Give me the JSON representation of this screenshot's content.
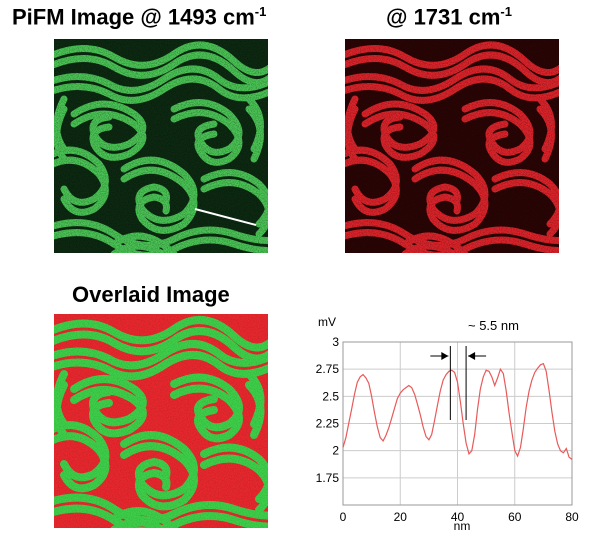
{
  "titles": {
    "pifm_main": "PiFM Image @ 1493 cm",
    "pifm_exp": "-1",
    "second_main": "@ 1731 cm",
    "second_exp": "-1",
    "overlay": "Overlaid Image"
  },
  "colors": {
    "green_bright": "#4fcf5a",
    "green_dark": "#0d2a12",
    "red_bright": "#e8262e",
    "red_dark": "#2b0505",
    "overlay_green": "#3ed04a",
    "overlay_red": "#e8282e",
    "line_profile": "#e85a5a",
    "grid": "#cccccc",
    "marker_line": "#ffffff"
  },
  "chart_data": {
    "type": "line",
    "ylabel": "mV",
    "xlabel": "nm",
    "xlim": [
      0,
      80
    ],
    "ylim": [
      1.5,
      3
    ],
    "xticks": [
      "0",
      "20",
      "40",
      "60",
      "80"
    ],
    "yticks": [
      "1.75",
      "2",
      "2.25",
      "2.5",
      "2.75",
      "3"
    ],
    "annotation": "~ 5.5 nm",
    "marker_x": [
      37.5,
      43
    ],
    "grid": true,
    "series": [
      {
        "x": [
          0,
          1,
          2,
          3,
          4,
          5,
          6,
          7,
          8,
          9,
          10,
          11,
          12,
          13,
          14,
          15,
          16,
          17,
          18,
          19,
          20,
          21,
          22,
          23,
          24,
          25,
          26,
          27,
          28,
          29,
          30,
          31,
          32,
          33,
          34,
          35,
          36,
          37,
          38,
          39,
          40,
          41,
          42,
          43,
          44,
          45,
          46,
          47,
          48,
          49,
          50,
          51,
          52,
          53,
          54,
          55,
          56,
          57,
          58,
          59,
          60,
          61,
          62,
          63,
          64,
          65,
          66,
          67,
          68,
          69,
          70,
          71,
          72,
          73,
          74,
          75,
          76,
          77,
          78,
          79,
          80
        ],
        "values": [
          2.03,
          2.12,
          2.25,
          2.38,
          2.52,
          2.63,
          2.68,
          2.7,
          2.67,
          2.62,
          2.5,
          2.35,
          2.22,
          2.12,
          2.09,
          2.14,
          2.21,
          2.3,
          2.39,
          2.48,
          2.53,
          2.56,
          2.58,
          2.6,
          2.58,
          2.52,
          2.43,
          2.33,
          2.22,
          2.13,
          2.1,
          2.15,
          2.28,
          2.42,
          2.55,
          2.65,
          2.7,
          2.73,
          2.74,
          2.72,
          2.63,
          2.45,
          2.25,
          2.07,
          1.97,
          2.0,
          2.15,
          2.38,
          2.57,
          2.68,
          2.74,
          2.73,
          2.68,
          2.6,
          2.67,
          2.75,
          2.71,
          2.55,
          2.35,
          2.17,
          2.0,
          1.95,
          2.03,
          2.2,
          2.4,
          2.55,
          2.65,
          2.72,
          2.76,
          2.79,
          2.8,
          2.73,
          2.55,
          2.35,
          2.18,
          2.06,
          2.0,
          1.98,
          2.02,
          1.94,
          1.92
        ]
      }
    ]
  }
}
